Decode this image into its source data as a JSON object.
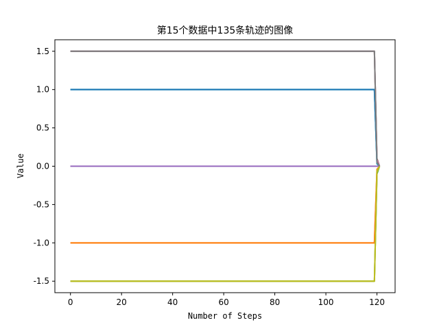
{
  "chart_data": {
    "type": "line",
    "title": "第15个数据中135条轨迹的图像",
    "xlabel": "Number of Steps",
    "ylabel": "Value",
    "xlim": [
      -6.1,
      127.1
    ],
    "ylim": [
      -1.65,
      1.65
    ],
    "xticks": [
      0,
      20,
      40,
      60,
      80,
      100,
      120
    ],
    "yticks": [
      -1.5,
      -1.0,
      -0.5,
      0.0,
      0.5,
      1.0,
      1.5
    ],
    "ytick_labels": [
      "-1.5",
      "-1.0",
      "-0.5",
      "0.0",
      "0.5",
      "1.0",
      "1.5"
    ],
    "grid": false,
    "legend": "none",
    "series": [
      {
        "color": "#1f77b4",
        "x": [
          0,
          119,
          120,
          121
        ],
        "y": [
          1.0,
          1.0,
          0.05,
          0.0
        ]
      },
      {
        "color": "#ff7f0e",
        "x": [
          0,
          119,
          120,
          121
        ],
        "y": [
          -1.0,
          -1.0,
          -0.05,
          0.0
        ]
      },
      {
        "color": "#2ca02c",
        "x": [
          0,
          119,
          120,
          121
        ],
        "y": [
          -1.5,
          -1.5,
          -0.1,
          0.0
        ]
      },
      {
        "color": "#d62728",
        "x": [
          0,
          119,
          120,
          121
        ],
        "y": [
          0.0,
          0.0,
          0.0,
          0.0
        ]
      },
      {
        "color": "#9467bd",
        "x": [
          0,
          119,
          120,
          121
        ],
        "y": [
          0.0,
          0.0,
          0.0,
          0.0
        ]
      },
      {
        "color": "#8c564b",
        "x": [
          0,
          119,
          120,
          121
        ],
        "y": [
          1.5,
          1.5,
          0.1,
          0.0
        ]
      },
      {
        "color": "#e377c2",
        "x": [
          0,
          119,
          120,
          121
        ],
        "y": [
          1.5,
          1.5,
          0.08,
          0.0
        ]
      },
      {
        "color": "#7f7f7f",
        "x": [
          0,
          119,
          120,
          121
        ],
        "y": [
          1.5,
          1.5,
          0.06,
          0.0
        ]
      },
      {
        "color": "#bcbd22",
        "x": [
          0,
          119,
          120,
          121
        ],
        "y": [
          -1.5,
          -1.5,
          -0.08,
          0.0
        ]
      },
      {
        "color": "#17becf",
        "x": [
          0,
          119,
          120,
          121
        ],
        "y": [
          1.0,
          1.0,
          0.03,
          0.0
        ]
      },
      {
        "color": "#1f77b4",
        "x": [
          0,
          119,
          120,
          121
        ],
        "y": [
          1.0,
          1.0,
          0.04,
          0.0
        ]
      },
      {
        "color": "#ff7f0e",
        "x": [
          0,
          119,
          120,
          121
        ],
        "y": [
          -1.0,
          -1.0,
          -0.04,
          0.0
        ]
      },
      {
        "color": "#9467bd",
        "x": [
          0,
          119,
          120,
          121
        ],
        "y": [
          0.0,
          0.0,
          0.0,
          0.0
        ]
      },
      {
        "color": "#7f7f7f",
        "x": [
          0,
          119,
          120,
          121
        ],
        "y": [
          1.5,
          1.5,
          0.05,
          0.0
        ]
      },
      {
        "color": "#bcbd22",
        "x": [
          0,
          119,
          120,
          121
        ],
        "y": [
          -1.5,
          -1.5,
          -0.06,
          0.0
        ]
      }
    ]
  }
}
